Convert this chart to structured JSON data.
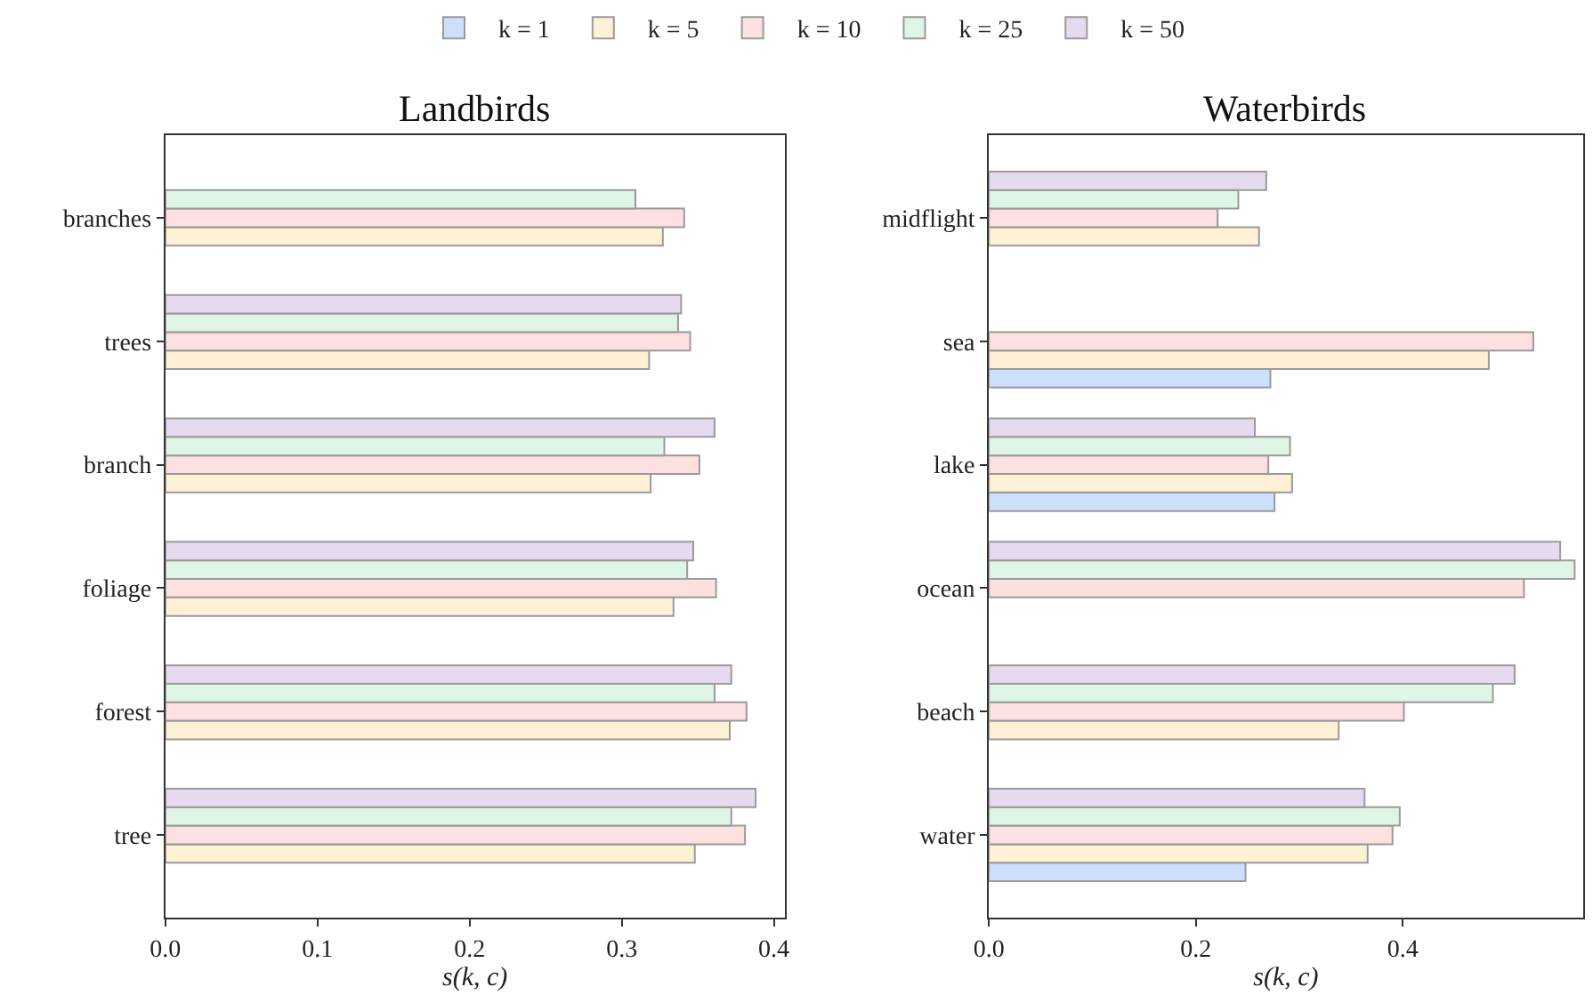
{
  "chart_data": [
    {
      "type": "bar",
      "orientation": "horizontal",
      "title": "Landbirds",
      "xlabel": "s(k, c)",
      "legend": "top",
      "categories": [
        "branches",
        "trees",
        "branch",
        "foliage",
        "forest",
        "tree"
      ],
      "xlim": [
        0,
        0.407
      ],
      "xticks": [
        {
          "value": 0,
          "label": "0.0"
        },
        0.1,
        0.2,
        0.3,
        0.4
      ],
      "series": [
        {
          "name": "k = 1",
          "color": "#cde0fb",
          "values": [
            null,
            null,
            null,
            null,
            null,
            null
          ]
        },
        {
          "name": "k = 5",
          "color": "#fff1d6",
          "values": [
            0.327,
            0.318,
            0.319,
            0.334,
            0.371,
            0.348
          ]
        },
        {
          "name": "k = 10",
          "color": "#fde0e0",
          "values": [
            0.341,
            0.345,
            0.351,
            0.362,
            0.382,
            0.381
          ]
        },
        {
          "name": "k = 25",
          "color": "#dff5e6",
          "values": [
            0.309,
            0.337,
            0.328,
            0.343,
            0.361,
            0.372
          ]
        },
        {
          "name": "k = 50",
          "color": "#e6daf0",
          "values": [
            null,
            0.339,
            0.361,
            0.347,
            0.372,
            0.388
          ]
        }
      ]
    },
    {
      "type": "bar",
      "orientation": "horizontal",
      "title": "Waterbirds",
      "xlabel": "s(k, c)",
      "categories": [
        "midflight",
        "sea",
        "lake",
        "ocean",
        "beach",
        "water"
      ],
      "xlim": [
        0,
        0.574
      ],
      "xticks": [
        {
          "value": 0,
          "label": "0.0"
        },
        0.2,
        0.4
      ],
      "series": [
        {
          "color": "#cde0fb",
          "values": [
            null,
            0.272,
            0.276,
            null,
            null,
            0.248
          ]
        },
        {
          "color": "#fff1d6",
          "values": [
            0.261,
            0.483,
            0.293,
            null,
            0.338,
            0.366
          ]
        },
        {
          "color": "#fde0e0",
          "values": [
            0.221,
            0.526,
            0.27,
            0.517,
            0.401,
            0.39
          ]
        },
        {
          "color": "#dff5e6",
          "values": [
            0.241,
            null,
            0.291,
            0.566,
            0.487,
            0.397
          ]
        },
        {
          "color": "#e6daf0",
          "values": [
            0.268,
            null,
            0.257,
            0.552,
            0.508,
            0.363
          ]
        }
      ]
    }
  ]
}
